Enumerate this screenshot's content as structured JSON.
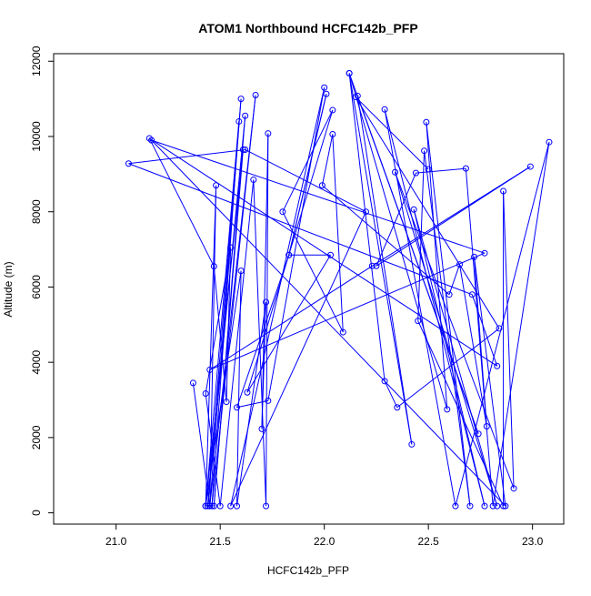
{
  "chart_data": {
    "type": "line",
    "title": "ATOM1 Northbound HCFC142b_PFP",
    "xlabel": "HCFC142b_PFP",
    "ylabel": "Altitude (m)",
    "xlim": [
      20.7,
      23.15
    ],
    "ylim": [
      -300,
      12200
    ],
    "xticks": [
      21.0,
      21.5,
      22.0,
      22.5,
      23.0
    ],
    "xtick_labels": [
      "21.0",
      "21.5",
      "22.0",
      "22.5",
      "23.0"
    ],
    "yticks": [
      0,
      2000,
      4000,
      6000,
      8000,
      10000,
      12000
    ],
    "ytick_labels": [
      "0",
      "2000",
      "4000",
      "6000",
      "8000",
      "10000",
      "12000"
    ],
    "grid": false,
    "series": [
      {
        "color": "#0000ff",
        "marker": "open-circle",
        "points": [
          [
            21.37,
            3450
          ],
          [
            21.45,
            180
          ],
          [
            21.48,
            8700
          ],
          [
            21.43,
            180
          ],
          [
            21.59,
            10400
          ],
          [
            21.46,
            180
          ],
          [
            21.67,
            11100
          ],
          [
            21.45,
            180
          ],
          [
            21.6,
            11000
          ],
          [
            21.44,
            180
          ],
          [
            21.62,
            10550
          ],
          [
            21.47,
            180
          ],
          [
            21.61,
            9650
          ],
          [
            21.43,
            180
          ],
          [
            21.6,
            6430
          ],
          [
            21.58,
            180
          ],
          [
            21.72,
            5600
          ],
          [
            21.7,
            2230
          ],
          [
            21.73,
            10080
          ],
          [
            21.72,
            180
          ],
          [
            21.66,
            8850
          ],
          [
            21.5,
            180
          ],
          [
            21.43,
            3170
          ],
          [
            21.55,
            7050
          ],
          [
            21.53,
            2950
          ],
          [
            21.47,
            6550
          ],
          [
            21.16,
            9950
          ],
          [
            22.83,
            3900
          ],
          [
            22.71,
            5800
          ],
          [
            21.06,
            9280
          ],
          [
            21.62,
            9650
          ],
          [
            22.2,
            8000
          ],
          [
            21.55,
            180
          ],
          [
            22.0,
            11300
          ],
          [
            21.73,
            2980
          ],
          [
            21.58,
            2800
          ],
          [
            21.83,
            6850
          ],
          [
            22.01,
            11130
          ],
          [
            21.83,
            6850
          ],
          [
            22.03,
            6850
          ],
          [
            21.63,
            3200
          ],
          [
            22.04,
            10700
          ],
          [
            21.8,
            8000
          ],
          [
            22.09,
            4800
          ],
          [
            22.04,
            10060
          ],
          [
            21.99,
            8700
          ],
          [
            22.6,
            5800
          ],
          [
            22.65,
            6600
          ],
          [
            22.78,
            2300
          ],
          [
            22.72,
            6800
          ],
          [
            22.87,
            180
          ],
          [
            21.17,
            9900
          ],
          [
            22.77,
            6900
          ],
          [
            21.45,
            3800
          ],
          [
            22.23,
            6560
          ],
          [
            22.99,
            9200
          ],
          [
            22.25,
            6560
          ],
          [
            22.44,
            9030
          ],
          [
            22.68,
            9150
          ],
          [
            22.81,
            180
          ],
          [
            23.08,
            9850
          ],
          [
            22.63,
            180
          ],
          [
            22.29,
            10720
          ],
          [
            22.77,
            180
          ],
          [
            22.43,
            8060
          ],
          [
            22.83,
            180
          ],
          [
            22.34,
            9050
          ],
          [
            22.91,
            650
          ],
          [
            22.86,
            8550
          ],
          [
            22.86,
            180
          ],
          [
            22.45,
            5100
          ],
          [
            22.48,
            9620
          ],
          [
            22.7,
            180
          ],
          [
            22.49,
            10380
          ],
          [
            22.59,
            2750
          ],
          [
            22.12,
            11680
          ],
          [
            22.74,
            2100
          ],
          [
            22.16,
            11080
          ],
          [
            22.42,
            1820
          ],
          [
            22.12,
            11680
          ],
          [
            22.29,
            3500
          ],
          [
            22.35,
            2800
          ],
          [
            22.84,
            4900
          ],
          [
            22.15,
            11050
          ],
          [
            22.5,
            9130
          ]
        ]
      }
    ]
  }
}
